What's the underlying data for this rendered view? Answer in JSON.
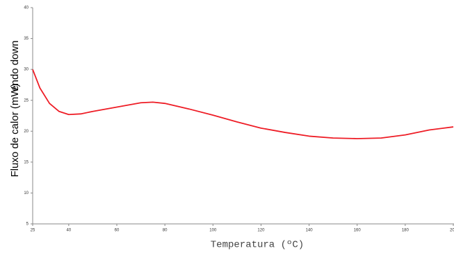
{
  "chart_data": {
    "type": "line",
    "y_label_main": "Fluxo de calor (mW)",
    "y_label_note": "endo down",
    "x_label": "Temperatura (ºC)",
    "x": [
      25,
      28,
      32,
      36,
      40,
      45,
      50,
      60,
      70,
      75,
      80,
      90,
      100,
      110,
      120,
      130,
      140,
      150,
      160,
      170,
      180,
      190,
      200
    ],
    "values": [
      30,
      27,
      24.5,
      23.2,
      22.7,
      22.8,
      23.2,
      23.9,
      24.6,
      24.7,
      24.5,
      23.6,
      22.6,
      21.5,
      20.5,
      19.8,
      19.2,
      18.9,
      18.8,
      18.9,
      19.4,
      20.2,
      20.7
    ],
    "color": "#ee1c25",
    "xlim": [
      25,
      200
    ],
    "xticks": [
      25,
      40,
      60,
      80,
      100,
      120,
      140,
      160,
      180,
      200
    ],
    "ylim": [
      5,
      40
    ],
    "yticks": [
      5,
      10,
      15,
      20,
      25,
      30,
      35,
      40
    ],
    "grid": false
  }
}
